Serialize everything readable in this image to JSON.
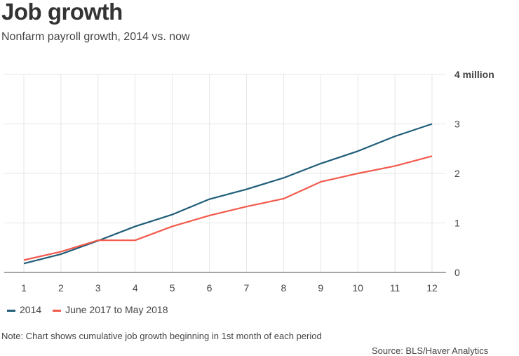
{
  "chart_data": {
    "type": "line",
    "title": "Job growth",
    "subtitle": "Nonfarm payroll growth, 2014 vs. now",
    "x": [
      1,
      2,
      3,
      4,
      5,
      6,
      7,
      8,
      9,
      10,
      11,
      12
    ],
    "x_tick_labels": [
      "1",
      "2",
      "3",
      "4",
      "5",
      "6",
      "7",
      "8",
      "9",
      "10",
      "11",
      "12"
    ],
    "y_ticks": [
      0,
      1,
      2,
      3,
      4
    ],
    "y_tick_labels": [
      "0",
      "1",
      "2",
      "3",
      "4 million"
    ],
    "ylim": [
      0,
      4
    ],
    "grid": true,
    "legend_position": "bottom-left",
    "series": [
      {
        "name": "2014",
        "color": "#1f5d78",
        "values": [
          0.18,
          0.37,
          0.64,
          0.93,
          1.17,
          1.48,
          1.68,
          1.91,
          2.2,
          2.45,
          2.75,
          3.0
        ]
      },
      {
        "name": "June 2017 to May 2018",
        "color": "#f25a4d",
        "values": [
          0.25,
          0.42,
          0.65,
          0.65,
          0.93,
          1.15,
          1.33,
          1.49,
          1.83,
          2.0,
          2.15,
          2.35
        ]
      }
    ],
    "note": "Note: Chart shows cumulative job growth beginning in 1st month of each period",
    "source": "Source: BLS/Haver Analytics"
  }
}
